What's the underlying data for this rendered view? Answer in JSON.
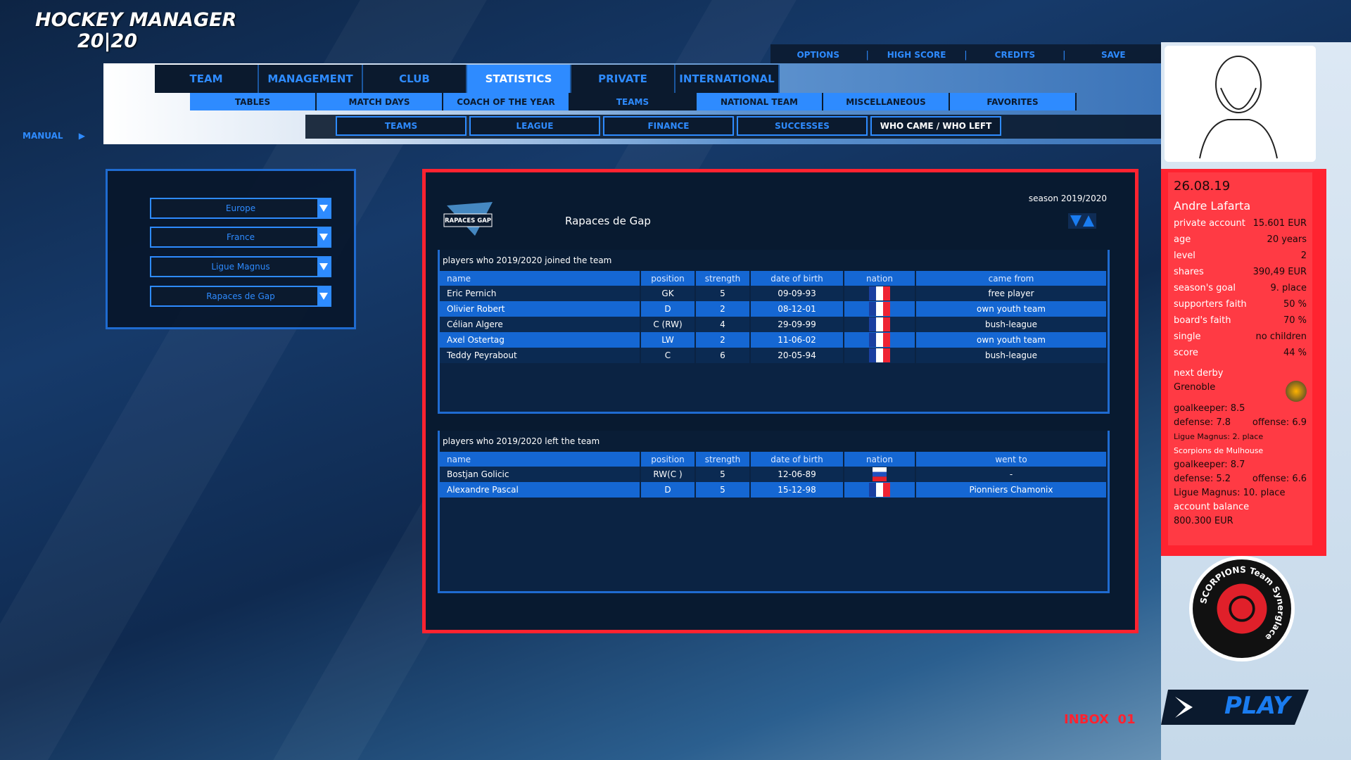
{
  "app": {
    "logo_line1": "HOCKEY MANAGER",
    "logo_line2": "20|20"
  },
  "top_links": [
    "OPTIONS",
    "HIGH SCORE",
    "CREDITS",
    "SAVE"
  ],
  "main_tabs": [
    "TEAM",
    "MANAGEMENT",
    "CLUB",
    "STATISTICS",
    "PRIVATE",
    "INTERNATIONAL"
  ],
  "main_tabs_active": "STATISTICS",
  "sub_tabs": [
    "TABLES",
    "MATCH DAYS",
    "COACH OF THE YEAR",
    "TEAMS",
    "NATIONAL TEAM",
    "MISCELLANEOUS",
    "FAVORITES"
  ],
  "sub_tabs_active": "TEAMS",
  "third_tabs": [
    "TEAMS",
    "LEAGUE",
    "FINANCE",
    "SUCCESSES",
    "WHO CAME / WHO LEFT"
  ],
  "third_tabs_active": "WHO CAME / WHO LEFT",
  "manual": "MANUAL",
  "filters": [
    "Europe",
    "France",
    "Ligue Magnus",
    "Rapaces de Gap"
  ],
  "panel": {
    "season": "season 2019/2020",
    "team_name": "Rapaces de Gap",
    "team_logo_text": "RAPACES GAP"
  },
  "joined": {
    "caption": "players who 2019/2020 joined the team",
    "columns": [
      "name",
      "position",
      "strength",
      "date of birth",
      "nation",
      "came from"
    ],
    "rows": [
      {
        "name": "Eric Pernich",
        "position": "GK",
        "strength": "5",
        "dob": "09-09-93",
        "nation": "france",
        "from": "free player"
      },
      {
        "name": "Olivier Robert",
        "position": "D",
        "strength": "2",
        "dob": "08-12-01",
        "nation": "france",
        "from": "own youth team"
      },
      {
        "name": "Célian Algere",
        "position": "C (RW)",
        "strength": "4",
        "dob": "29-09-99",
        "nation": "france",
        "from": "bush-league"
      },
      {
        "name": "Axel Ostertag",
        "position": "LW",
        "strength": "2",
        "dob": "11-06-02",
        "nation": "france",
        "from": "own youth team"
      },
      {
        "name": "Teddy Peyrabout",
        "position": "C",
        "strength": "6",
        "dob": "20-05-94",
        "nation": "france",
        "from": "bush-league"
      }
    ]
  },
  "left": {
    "caption": "players who 2019/2020 left the team",
    "columns": [
      "name",
      "position",
      "strength",
      "date of birth",
      "nation",
      "went to"
    ],
    "rows": [
      {
        "name": "Bostjan Golicic",
        "position": "RW(C )",
        "strength": "5",
        "dob": "12-06-89",
        "nation": "slovenia",
        "to": "-"
      },
      {
        "name": "Alexandre Pascal",
        "position": "D",
        "strength": "5",
        "dob": "15-12-98",
        "nation": "france",
        "to": "Pionniers Chamonix"
      }
    ]
  },
  "profile": {
    "date": "26.08.19",
    "name": "Andre Lafarta",
    "stats": [
      [
        "private account",
        "15.601 EUR"
      ],
      [
        "age",
        "20 years"
      ],
      [
        "level",
        "2"
      ],
      [
        "shares",
        "390,49 EUR"
      ],
      [
        "season's goal",
        "9. place"
      ],
      [
        "supporters faith",
        "50 %"
      ],
      [
        "board's faith",
        "70 %"
      ],
      [
        "single",
        "no children"
      ],
      [
        "score",
        "44 %"
      ]
    ],
    "derby_label": "next derby",
    "derby_team": "Grenoble",
    "derby_gk": "goalkeeper: 8.5",
    "derby_def": "defense: 7.8",
    "derby_off": "offense: 6.9",
    "derby_league": "Ligue Magnus: 2. place",
    "own_team": "Scorpions de Mulhouse",
    "own_gk": "goalkeeper: 8.7",
    "own_def": "defense: 5.2",
    "own_off": "offense: 6.6",
    "own_league": "Ligue Magnus: 10. place",
    "balance_label": "account balance",
    "balance": "800.300 EUR"
  },
  "club_logo_text": "SCORPIONS Team Synerglace",
  "inbox": "INBOX  01",
  "play": "PLAY",
  "colors": {
    "accent": "#2e8bff",
    "alert": "#ff2330",
    "panel": "#081a30"
  }
}
